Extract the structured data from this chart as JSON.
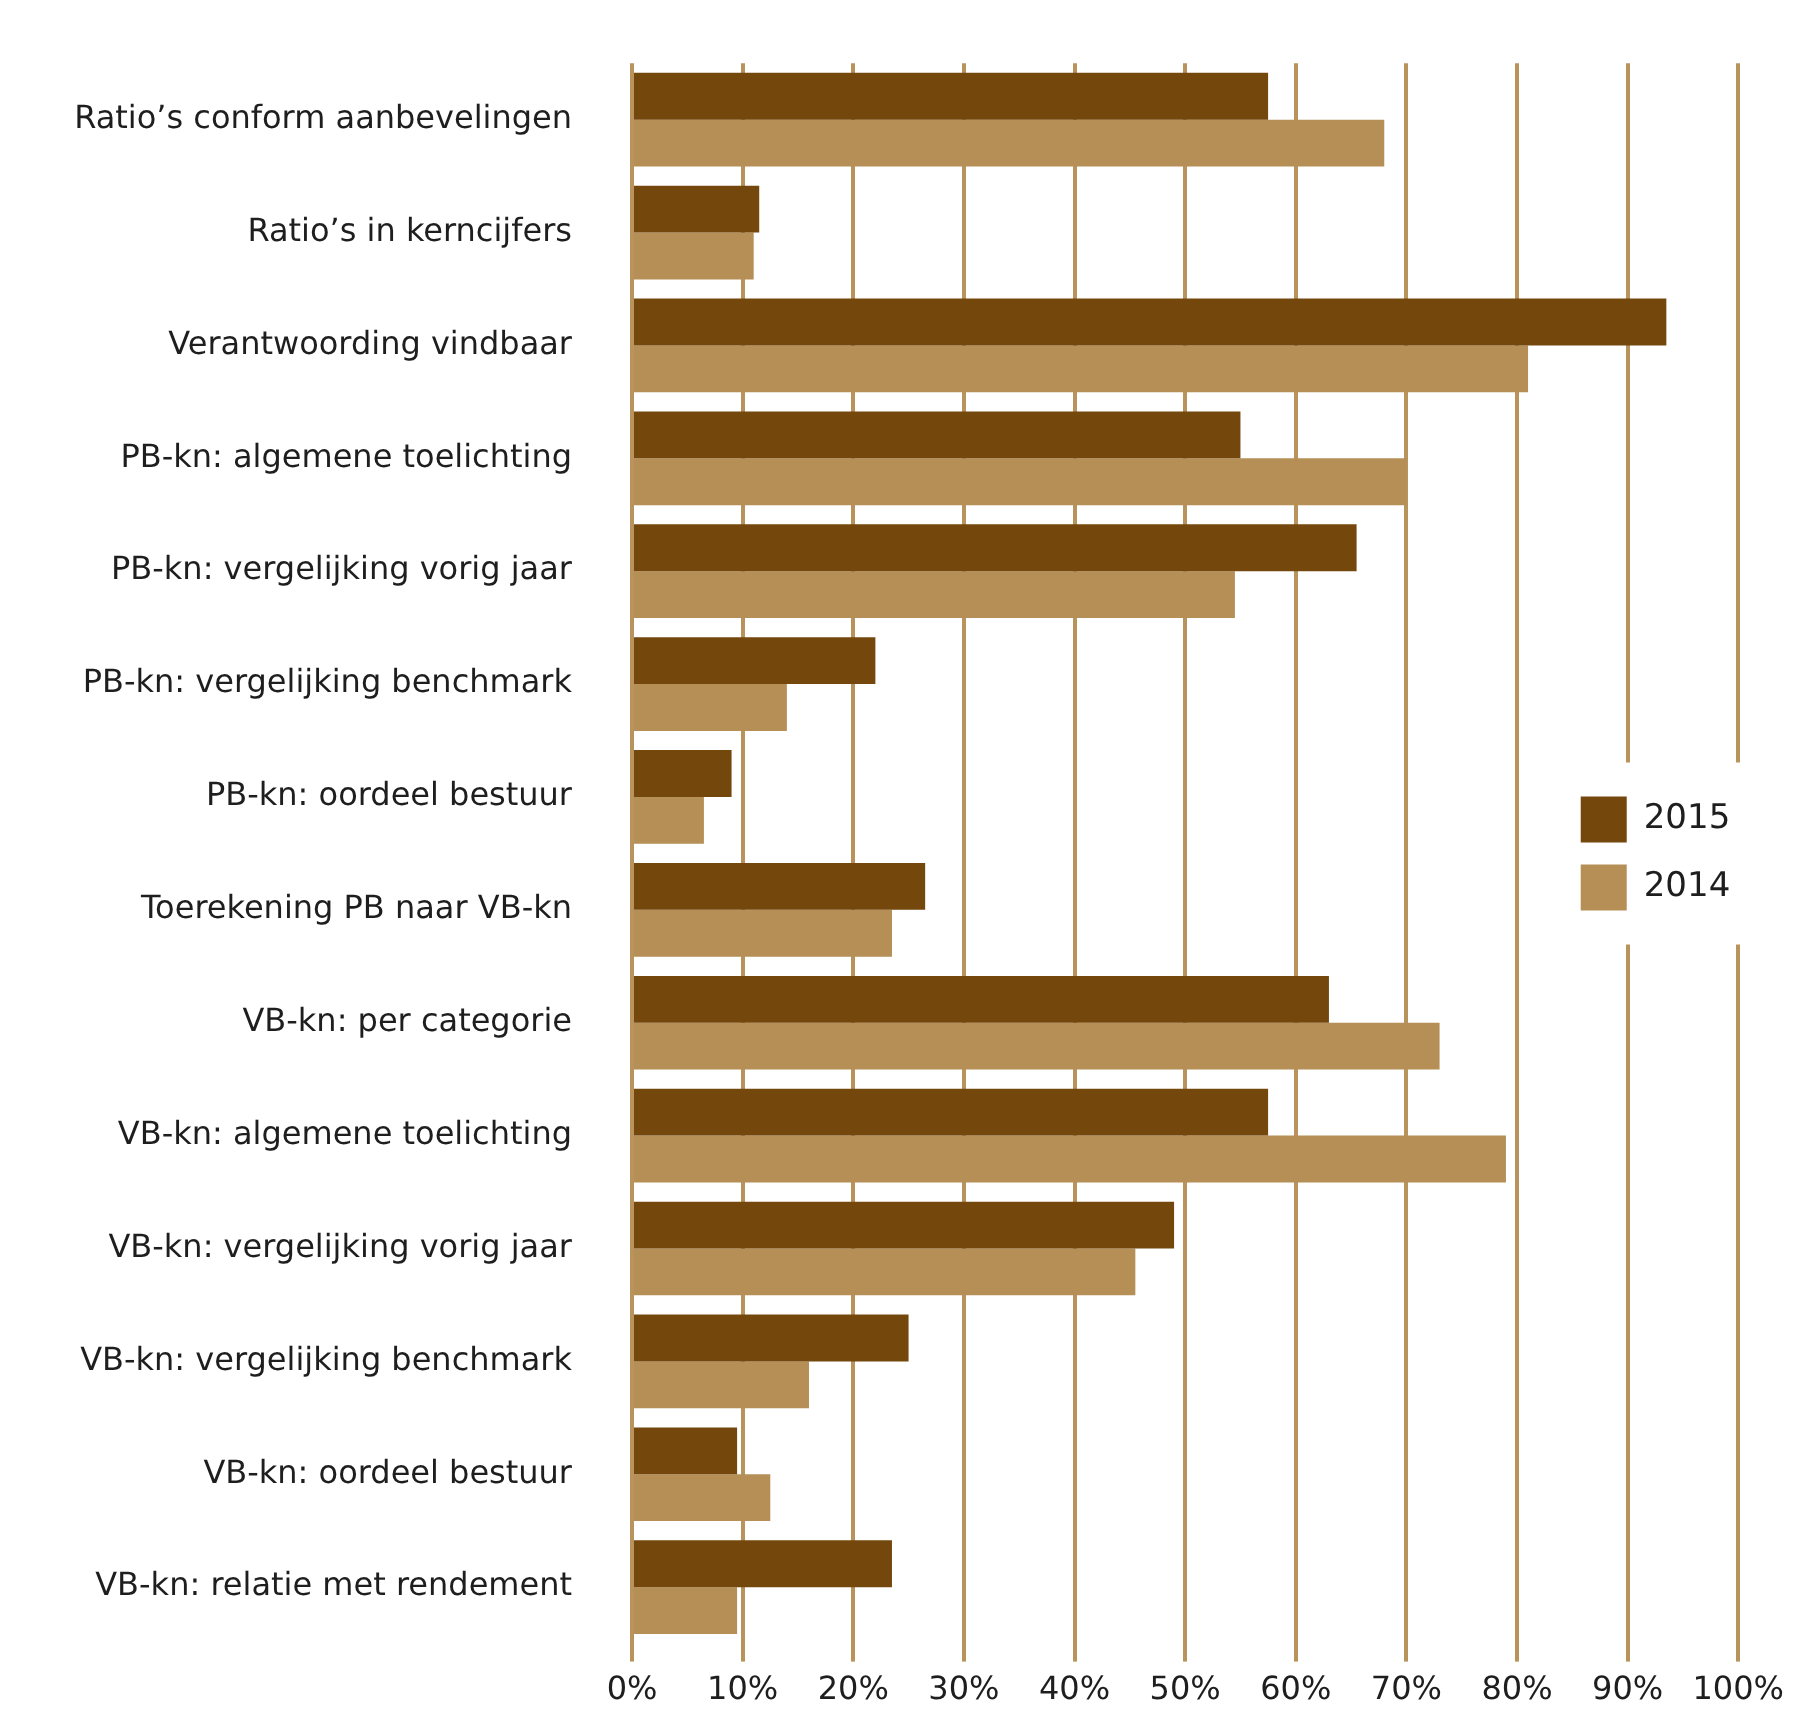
{
  "chart_data": {
    "type": "bar",
    "orientation": "horizontal",
    "categories": [
      "Ratio’s conform aanbevelingen",
      "Ratio’s in kerncijfers",
      "Verantwoording vindbaar",
      "PB-kn: algemene toelichting",
      "PB-kn: vergelijking vorig jaar",
      "PB-kn: vergelijking benchmark",
      "PB-kn: oordeel bestuur",
      "Toerekening PB naar VB-kn",
      "VB-kn: per categorie",
      "VB-kn: algemene toelichting",
      "VB-kn: vergelijking vorig jaar",
      "VB-kn: vergelijking benchmark",
      "VB-kn: oordeel bestuur",
      "VB-kn: relatie met rendement"
    ],
    "series": [
      {
        "name": "2015",
        "color": "#74470c",
        "values": [
          57.5,
          11.5,
          93.5,
          55,
          65.5,
          22,
          9,
          26.5,
          63,
          57.5,
          49,
          25,
          9.5,
          23.5
        ]
      },
      {
        "name": "2014",
        "color": "#b58f56",
        "values": [
          68,
          11,
          81,
          70,
          54.5,
          14,
          6.5,
          23.5,
          73,
          79,
          45.5,
          16,
          12.5,
          9.5
        ]
      }
    ],
    "xlim": [
      0,
      100
    ],
    "xticks": [
      {
        "value": 0,
        "label": "0%"
      },
      {
        "value": 10,
        "label": "10%"
      },
      {
        "value": 20,
        "label": "20%"
      },
      {
        "value": 30,
        "label": "30%"
      },
      {
        "value": 40,
        "label": "40%"
      },
      {
        "value": 50,
        "label": "50%"
      },
      {
        "value": 60,
        "label": "60%"
      },
      {
        "value": 70,
        "label": "70%"
      },
      {
        "value": 80,
        "label": "80%"
      },
      {
        "value": 90,
        "label": "90%"
      },
      {
        "value": 100,
        "label": "100%"
      }
    ],
    "grid": "x",
    "legend": "right"
  }
}
